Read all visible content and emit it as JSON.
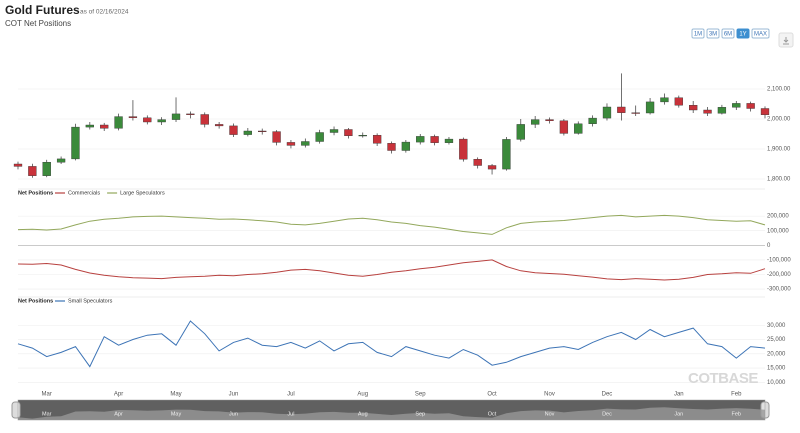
{
  "header": {
    "title": "Gold Futures",
    "as_of": "as of 02/16/2024",
    "subtitle": "COT Net Positions"
  },
  "range_buttons": [
    "1M",
    "3M",
    "6M",
    "1Y",
    "MAX"
  ],
  "active_range": "1Y",
  "watermark": "COTBASE",
  "chart_data": [
    {
      "type": "candlestick",
      "up_color": "#3b8a3b",
      "down_color": "#c8323a",
      "categories": [
        null,
        null,
        "Mar",
        null,
        null,
        null,
        null,
        "Apr",
        null,
        null,
        null,
        "May",
        null,
        null,
        null,
        "Jun",
        null,
        null,
        null,
        "Jul",
        null,
        null,
        null,
        null,
        "Aug",
        null,
        null,
        null,
        "Sep",
        null,
        null,
        null,
        null,
        "Oct",
        null,
        null,
        null,
        "Nov",
        null,
        null,
        null,
        "Dec",
        null,
        null,
        null,
        null,
        "Jan",
        null,
        null,
        null,
        "Feb",
        null,
        null
      ],
      "open": [
        1850,
        1842,
        1811,
        1856,
        1867,
        1973,
        1980,
        1969,
        2008,
        2004,
        1990,
        1998,
        2017,
        2015,
        1982,
        1977,
        1948,
        1960,
        1958,
        1922,
        1912,
        1925,
        1955,
        1965,
        1944,
        1946,
        1919,
        1895,
        1923,
        1942,
        1921,
        1933,
        1866,
        1845,
        1833,
        1932,
        1982,
        1998,
        1994,
        1952,
        1984,
        2003,
        2040,
        2021,
        2020,
        2057,
        2071,
        2046,
        2030,
        2019,
        2039,
        2052,
        2035
      ],
      "high": [
        1858,
        1851,
        1864,
        1875,
        1984,
        1990,
        1987,
        2018,
        2063,
        2012,
        2006,
        2072,
        2025,
        2022,
        1990,
        1985,
        1970,
        1968,
        1963,
        1930,
        1935,
        1964,
        1975,
        1970,
        1955,
        1952,
        1925,
        1930,
        1950,
        1948,
        1940,
        1938,
        1872,
        1850,
        1940,
        2000,
        2010,
        2005,
        2000,
        1992,
        2012,
        2052,
        2152,
        2045,
        2070,
        2085,
        2078,
        2060,
        2040,
        2047,
        2060,
        2058,
        2042
      ],
      "low": [
        1832,
        1804,
        1806,
        1850,
        1862,
        1965,
        1960,
        1962,
        1995,
        1982,
        1980,
        1990,
        2002,
        1972,
        1968,
        1940,
        1942,
        1948,
        1912,
        1902,
        1905,
        1918,
        1946,
        1935,
        1938,
        1910,
        1885,
        1888,
        1915,
        1912,
        1915,
        1858,
        1835,
        1815,
        1828,
        1925,
        1970,
        1985,
        1945,
        1948,
        1975,
        1995,
        1995,
        2010,
        2015,
        2048,
        2038,
        2020,
        2010,
        2015,
        2030,
        2025,
        2002
      ],
      "close": [
        1842,
        1811,
        1856,
        1867,
        1973,
        1980,
        1969,
        2008,
        2004,
        1990,
        1998,
        2017,
        2015,
        1982,
        1977,
        1948,
        1960,
        1958,
        1922,
        1912,
        1925,
        1955,
        1965,
        1944,
        1946,
        1919,
        1895,
        1923,
        1942,
        1921,
        1933,
        1866,
        1845,
        1833,
        1932,
        1982,
        1998,
        1994,
        1952,
        1984,
        2003,
        2040,
        2021,
        2020,
        2057,
        2071,
        2046,
        2030,
        2019,
        2039,
        2052,
        2035,
        2014
      ],
      "ylim": [
        1780,
        2190
      ],
      "yticks": [
        {
          "value": 1800,
          "label": "1,800.00"
        },
        {
          "value": 1900,
          "label": "1,900.00"
        },
        {
          "value": 2000,
          "label": "2,000.00"
        },
        {
          "value": 2100,
          "label": "2,100.00"
        }
      ]
    },
    {
      "type": "line",
      "title": "Net Positions",
      "ylim": [
        -320000,
        290000
      ],
      "yticks": [
        {
          "value": -300000,
          "label": "-300,000"
        },
        {
          "value": -200000,
          "label": "-200,000"
        },
        {
          "value": -100000,
          "label": "-100,000"
        },
        0,
        {
          "value": 100000,
          "label": "100,000"
        },
        {
          "value": 200000,
          "label": "200,000"
        }
      ],
      "series": [
        {
          "name": "Commercials",
          "color": "#b8413f",
          "values": [
            -128000,
            -130000,
            -125000,
            -135000,
            -165000,
            -190000,
            -205000,
            -215000,
            -222000,
            -225000,
            -228000,
            -220000,
            -215000,
            -212000,
            -205000,
            -208000,
            -200000,
            -195000,
            -185000,
            -170000,
            -165000,
            -175000,
            -190000,
            -205000,
            -212000,
            -200000,
            -185000,
            -175000,
            -160000,
            -150000,
            -135000,
            -120000,
            -110000,
            -100000,
            -145000,
            -175000,
            -188000,
            -193000,
            -198000,
            -208000,
            -218000,
            -230000,
            -235000,
            -228000,
            -232000,
            -238000,
            -232000,
            -220000,
            -200000,
            -195000,
            -188000,
            -192000,
            -160000
          ]
        },
        {
          "name": "Large Speculators",
          "color": "#93a85c",
          "values": [
            108000,
            110000,
            105000,
            112000,
            140000,
            165000,
            178000,
            185000,
            195000,
            198000,
            200000,
            195000,
            190000,
            185000,
            178000,
            180000,
            175000,
            168000,
            160000,
            145000,
            140000,
            150000,
            165000,
            180000,
            185000,
            175000,
            160000,
            150000,
            135000,
            125000,
            110000,
            95000,
            85000,
            75000,
            120000,
            150000,
            160000,
            165000,
            170000,
            180000,
            190000,
            200000,
            205000,
            195000,
            200000,
            205000,
            200000,
            190000,
            175000,
            170000,
            165000,
            168000,
            140000
          ]
        }
      ]
    },
    {
      "type": "line",
      "title": "Net Positions",
      "ylim": [
        8000,
        35000
      ],
      "yticks": [
        {
          "value": 10000,
          "label": "10,000"
        },
        {
          "value": 15000,
          "label": "15,000"
        },
        {
          "value": 20000,
          "label": "20,000"
        },
        {
          "value": 25000,
          "label": "25,000"
        },
        {
          "value": 30000,
          "label": "30,000"
        }
      ],
      "series": [
        {
          "name": "Small Speculators",
          "color": "#3d74b6",
          "values": [
            23500,
            22000,
            19000,
            20500,
            22500,
            15500,
            26000,
            23000,
            25000,
            26500,
            27000,
            23000,
            31500,
            27000,
            21000,
            24000,
            25500,
            23000,
            22500,
            24000,
            22000,
            24500,
            21000,
            23500,
            24000,
            20500,
            19000,
            22500,
            21000,
            19500,
            18500,
            21500,
            19500,
            16000,
            17000,
            19000,
            20500,
            22000,
            22500,
            21500,
            24000,
            26000,
            27500,
            25000,
            28500,
            26000,
            27500,
            29000,
            23500,
            22500,
            18500,
            22500,
            22000
          ]
        }
      ]
    }
  ]
}
